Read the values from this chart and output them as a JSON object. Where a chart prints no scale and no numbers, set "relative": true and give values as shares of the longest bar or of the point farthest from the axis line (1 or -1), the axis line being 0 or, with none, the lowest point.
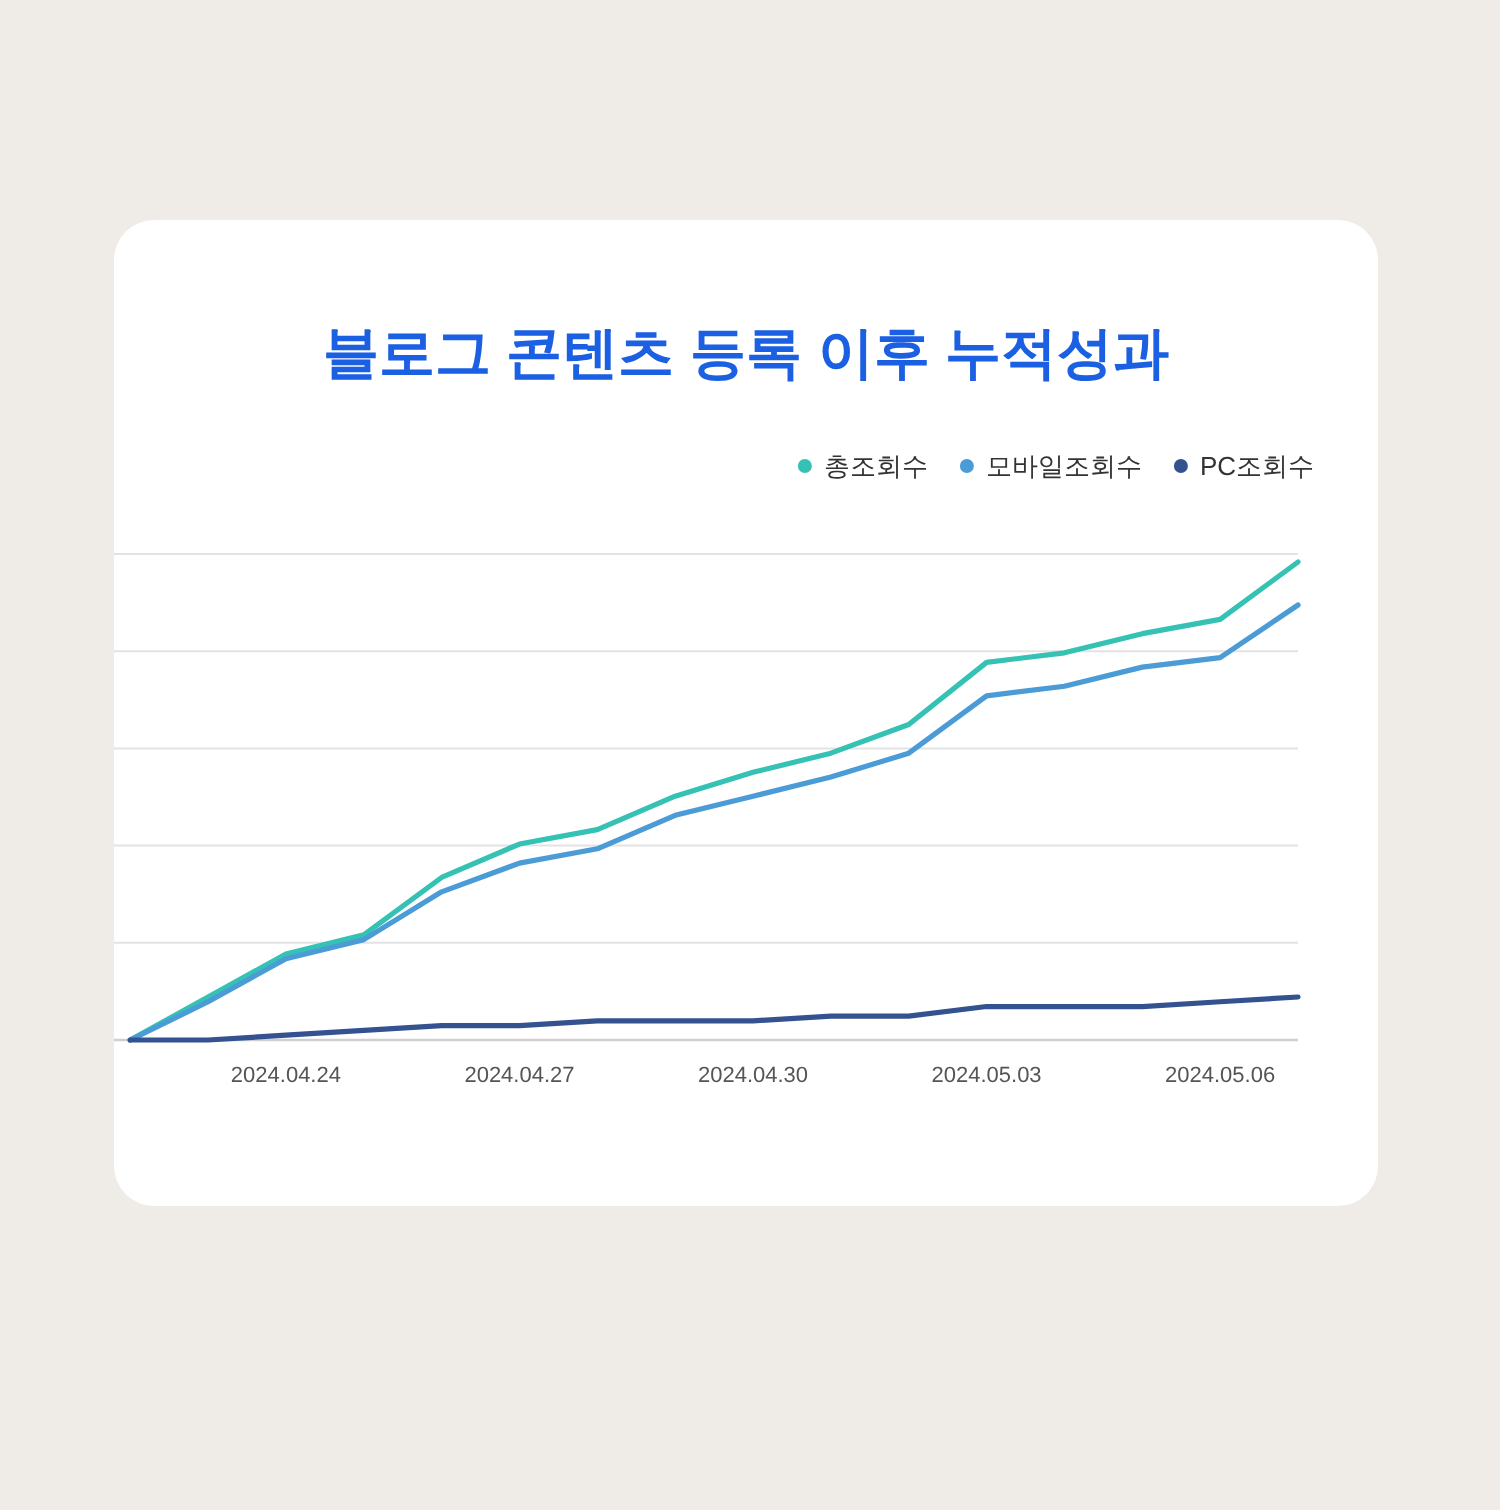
{
  "chart_data": {
    "type": "line",
    "title": "블로그 콘텐츠 등록 이후 누적성과",
    "x": [
      "2024-04-22",
      "2024-04-23",
      "2024-04-24",
      "2024-04-25",
      "2024-04-26",
      "2024-04-27",
      "2024-04-28",
      "2024-04-29",
      "2024-04-30",
      "2024-05-01",
      "2024-05-02",
      "2024-05-03",
      "2024-05-04",
      "2024-05-05",
      "2024-05-06",
      "2024-05-07"
    ],
    "xlim": [
      "2024-04-21T19:00",
      "2024-05-07"
    ],
    "xticks": [
      {
        "value": "2024-04-24",
        "label": "2024.04.24"
      },
      {
        "value": "2024-04-27",
        "label": "2024.04.27"
      },
      {
        "value": "2024-04-30",
        "label": "2024.04.30"
      },
      {
        "value": "2024-05-03",
        "label": "2024.05.03"
      },
      {
        "value": "2024-05-06",
        "label": "2024.05.06"
      }
    ],
    "relative": true,
    "grid": "y",
    "legend": "top right",
    "series": [
      {
        "name": "총조회수",
        "color": "#35c2b5",
        "values": [
          0,
          0.09,
          0.18,
          0.22,
          0.34,
          0.41,
          0.44,
          0.51,
          0.56,
          0.6,
          0.66,
          0.79,
          0.81,
          0.85,
          0.88,
          1
        ]
      },
      {
        "name": "모바일조회수",
        "color": "#4b9cd6",
        "values": [
          0,
          0.08,
          0.17,
          0.21,
          0.31,
          0.37,
          0.4,
          0.47,
          0.51,
          0.55,
          0.6,
          0.72,
          0.74,
          0.78,
          0.8,
          0.91
        ]
      },
      {
        "name": "PC조회수",
        "color": "#34528f",
        "values": [
          0,
          0,
          0.01,
          0.02,
          0.03,
          0.03,
          0.04,
          0.04,
          0.04,
          0.05,
          0.05,
          0.07,
          0.07,
          0.07,
          0.08,
          0.09
        ]
      }
    ]
  }
}
